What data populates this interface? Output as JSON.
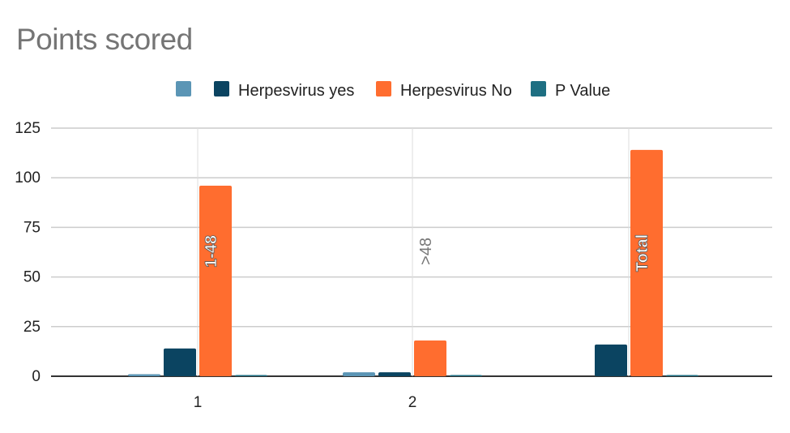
{
  "chart_data": {
    "type": "bar",
    "title": "Points scored",
    "categories": [
      "1",
      "2",
      ""
    ],
    "category_annotations": [
      "1-48",
      ">48",
      "Total"
    ],
    "series": [
      {
        "name": "",
        "color": "#5b95b5",
        "values": [
          1,
          2,
          0
        ]
      },
      {
        "name": "Herpesvirus yes",
        "color": "#0b4461",
        "values": [
          14,
          2,
          16
        ]
      },
      {
        "name": "Herpesvirus No",
        "color": "#ff6d2f",
        "values": [
          96,
          18,
          114
        ]
      },
      {
        "name": "P Value",
        "color": "#1e6f82",
        "values": [
          0.3,
          0.3,
          0.3
        ]
      }
    ],
    "y_ticks": [
      "0",
      "25",
      "50",
      "75",
      "100",
      "125"
    ],
    "ylim": [
      0,
      125
    ],
    "xlabel": "",
    "ylabel": "",
    "grid": true,
    "legend_position": "top"
  }
}
